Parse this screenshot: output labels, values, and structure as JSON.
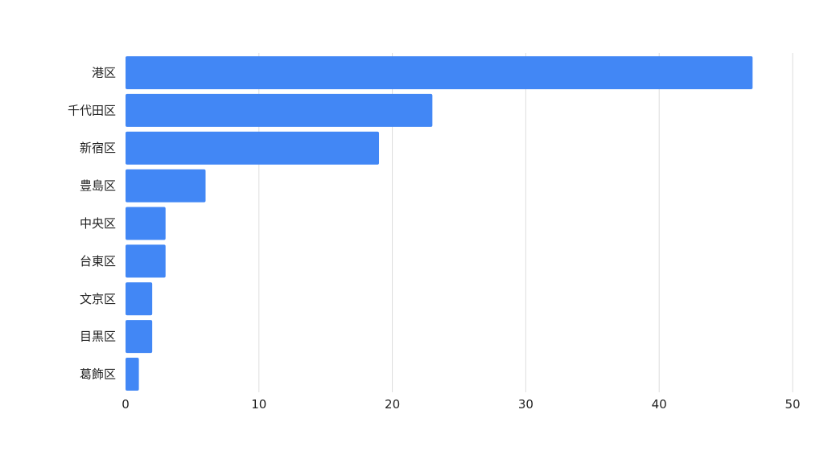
{
  "chart_data": {
    "type": "bar",
    "orientation": "horizontal",
    "title": "",
    "xlabel": "",
    "ylabel": "",
    "categories": [
      "港区",
      "千代田区",
      "新宿区",
      "豊島区",
      "中央区",
      "台東区",
      "文京区",
      "目黒区",
      "葛飾区"
    ],
    "values": [
      47,
      23,
      19,
      6,
      3,
      3,
      2,
      2,
      1
    ],
    "xlim": [
      0,
      50
    ],
    "xticks": [
      "0",
      "10",
      "20",
      "30",
      "40",
      "50"
    ],
    "grid": true,
    "legend": "none",
    "bar_color": "#4287f5",
    "grid_color": "#dddddd"
  }
}
